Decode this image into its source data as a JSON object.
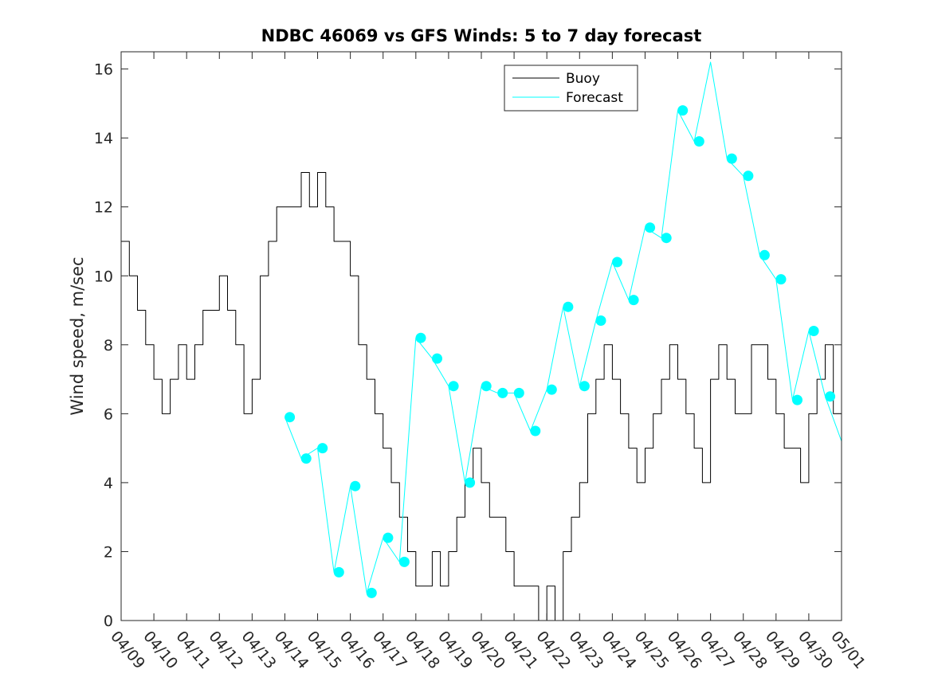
{
  "chart_data": {
    "type": "line",
    "title": "NDBC 46069 vs GFS Winds: 5 to 7 day forecast",
    "xlabel": "",
    "ylabel": "Wind speed, m/sec",
    "ylim": [
      0,
      16.5
    ],
    "xlim": [
      0,
      22
    ],
    "x_tick_labels": [
      "04/09",
      "04/10",
      "04/11",
      "04/12",
      "04/13",
      "04/14",
      "04/15",
      "04/16",
      "04/17",
      "04/18",
      "04/19",
      "04/20",
      "04/21",
      "04/22",
      "04/23",
      "04/24",
      "04/25",
      "04/26",
      "04/27",
      "04/28",
      "04/29",
      "04/30",
      "05/01"
    ],
    "y_ticks": [
      0,
      2,
      4,
      6,
      8,
      10,
      12,
      14,
      16
    ],
    "grid": false,
    "legend": {
      "position": "top-right",
      "entries": [
        "Buoy",
        "Forecast"
      ]
    },
    "colors": {
      "buoy": "#000000",
      "forecast": "#00ffff",
      "axis": "#262626"
    },
    "series": [
      {
        "name": "Buoy",
        "x": [
          0.0,
          0.25,
          0.5,
          0.75,
          1.0,
          1.25,
          1.5,
          1.75,
          2.0,
          2.25,
          2.5,
          2.75,
          3.0,
          3.25,
          3.5,
          3.75,
          4.0,
          4.25,
          4.5,
          4.75,
          5.0,
          5.25,
          5.5,
          5.75,
          6.0,
          6.25,
          6.5,
          6.75,
          7.0,
          7.25,
          7.5,
          7.75,
          8.0,
          8.25,
          8.5,
          8.75,
          9.0,
          9.25,
          9.5,
          9.75,
          10.0,
          10.25,
          10.5,
          10.75,
          11.0,
          11.25,
          11.5,
          11.75,
          12.0,
          12.25,
          12.5,
          12.75,
          13.0,
          13.25,
          13.5,
          13.75,
          14.0,
          14.25,
          14.5,
          14.75,
          15.0,
          15.25,
          15.5,
          15.75,
          16.0,
          16.25,
          16.5,
          16.75,
          17.0,
          17.25,
          17.5,
          17.75,
          18.0,
          18.25,
          18.5,
          18.75,
          19.0,
          19.25,
          19.5,
          19.75,
          20.0,
          20.25,
          20.5,
          20.75,
          21.0,
          21.25,
          21.5,
          21.75,
          22.0
        ],
        "values": [
          11,
          10,
          9,
          8,
          7,
          6,
          7,
          8,
          7,
          8,
          9,
          9,
          10,
          9,
          8,
          6,
          7,
          10,
          11,
          12,
          12,
          12,
          13,
          12,
          13,
          12,
          11,
          11,
          10,
          8,
          7,
          6,
          5,
          4,
          3,
          2,
          1,
          1,
          2,
          1,
          2,
          3,
          4,
          5,
          4,
          3,
          3,
          2,
          1,
          1,
          1,
          0,
          1,
          0,
          2,
          3,
          4,
          6,
          7,
          8,
          7,
          6,
          5,
          4,
          5,
          6,
          7,
          8,
          7,
          6,
          5,
          4,
          7,
          8,
          7,
          6,
          6,
          8,
          8,
          7,
          6,
          5,
          5,
          4,
          6,
          7,
          8,
          6,
          5
        ]
      },
      {
        "name": "Forecast",
        "x": [
          5.0,
          5.5,
          6.0,
          6.5,
          7.0,
          7.5,
          8.0,
          8.5,
          9.0,
          9.5,
          10.0,
          10.5,
          11.0,
          11.5,
          12.0,
          12.5,
          13.0,
          13.5,
          14.0,
          14.5,
          15.0,
          15.5,
          16.0,
          16.5,
          17.0,
          17.5,
          18.0,
          18.5,
          19.0,
          19.5,
          20.0,
          20.5,
          21.0,
          21.5,
          22.0
        ],
        "values": [
          5.9,
          4.7,
          5.0,
          1.4,
          3.9,
          0.8,
          2.4,
          1.7,
          8.2,
          7.6,
          6.8,
          4.0,
          6.8,
          6.6,
          6.6,
          5.5,
          6.7,
          9.1,
          6.8,
          8.7,
          10.4,
          9.3,
          11.4,
          11.1,
          14.8,
          13.9,
          16.2,
          13.4,
          12.9,
          10.6,
          9.9,
          6.4,
          8.4,
          6.5,
          5.2
        ]
      }
    ],
    "markers": {
      "name": "Forecast",
      "x": [
        5.15,
        5.65,
        6.15,
        6.65,
        7.15,
        7.65,
        8.15,
        8.65,
        9.15,
        9.65,
        10.15,
        10.65,
        11.15,
        11.65,
        12.15,
        12.65,
        13.15,
        13.65,
        14.15,
        14.65,
        15.15,
        15.65,
        16.15,
        16.65,
        17.15,
        17.65,
        18.65,
        19.15,
        19.65,
        20.15,
        20.65,
        21.15,
        21.65
      ],
      "values": [
        5.9,
        4.7,
        5.0,
        1.4,
        3.9,
        0.8,
        2.4,
        1.7,
        8.2,
        7.6,
        6.8,
        4.0,
        6.8,
        6.6,
        6.6,
        5.5,
        6.7,
        9.1,
        6.8,
        8.7,
        10.4,
        9.3,
        11.4,
        11.1,
        14.8,
        13.9,
        13.4,
        12.9,
        10.6,
        9.9,
        6.4,
        8.4,
        6.5
      ]
    }
  }
}
